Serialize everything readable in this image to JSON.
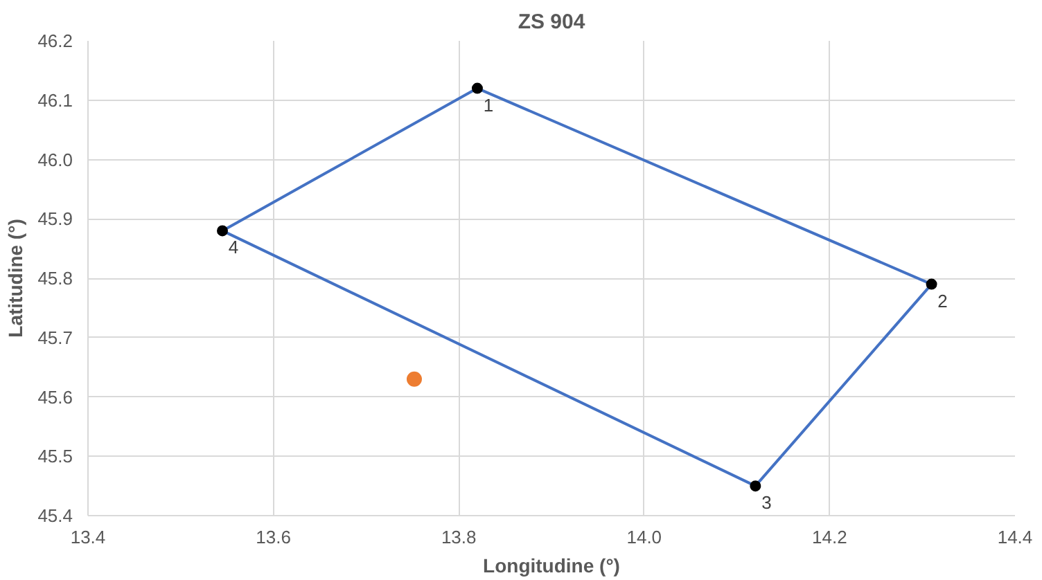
{
  "chart_data": {
    "type": "line",
    "title": "ZS 904",
    "xlabel": "Longitudine (°)",
    "ylabel": "Latitudine (°)",
    "series": [
      {
        "color": "#4472c4",
        "marker": "none",
        "x": [
          13.545,
          13.82,
          14.31
        ],
        "values": [
          45.88,
          46.12,
          45.79
        ]
      },
      {
        "color": "#4472c4",
        "marker": "none",
        "x": [
          13.545,
          14.12,
          14.31
        ],
        "values": [
          45.88,
          45.45,
          45.79
        ]
      },
      {
        "type": "scatter",
        "color": "#000000",
        "marker": "circle",
        "x": [
          13.82,
          14.31,
          14.12,
          13.545
        ],
        "values": [
          46.12,
          45.79,
          45.45,
          45.88
        ]
      },
      {
        "type": "scatter",
        "color": "#ed7d31",
        "marker": "circle",
        "x": [
          13.752
        ],
        "values": [
          45.63
        ]
      }
    ],
    "annotations": [
      {
        "text": "1",
        "x": 13.82,
        "y": 46.12
      },
      {
        "text": "2",
        "x": 14.31,
        "y": 45.79
      },
      {
        "text": "3",
        "x": 14.12,
        "y": 45.45
      },
      {
        "text": "4",
        "x": 13.545,
        "y": 45.88
      }
    ],
    "xlim": [
      13.4,
      14.4
    ],
    "xticks": [
      13.4,
      13.6,
      13.8,
      {
        "value": 14,
        "label": "14.0"
      },
      14.2,
      14.4
    ],
    "ylim": [
      45.4,
      46.2
    ],
    "yticks": [
      45.4,
      45.5,
      45.6,
      45.7,
      45.8,
      45.9,
      {
        "value": 46,
        "label": "46.0"
      },
      46.1,
      46.2
    ],
    "grid": true
  }
}
